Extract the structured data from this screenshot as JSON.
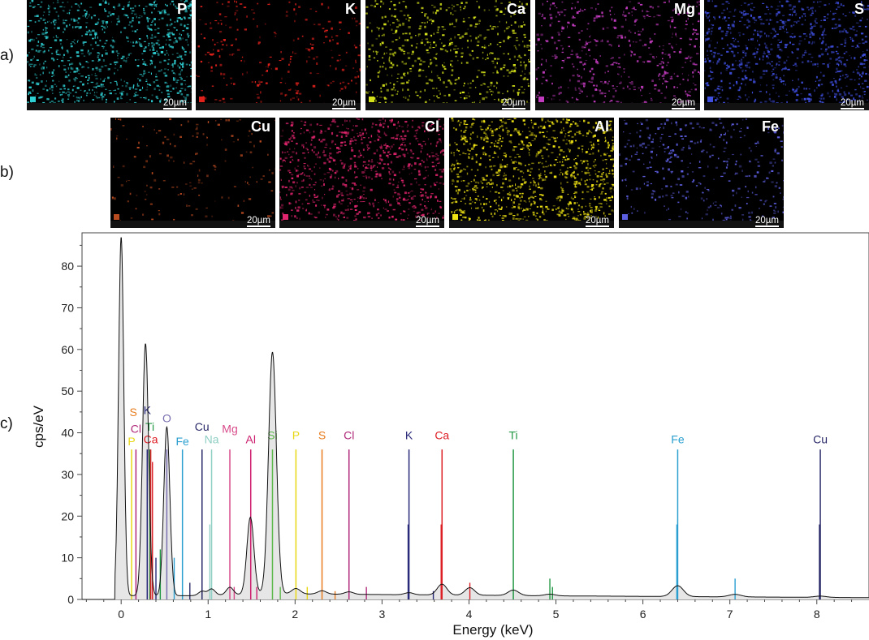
{
  "row_labels": {
    "a": "a)",
    "b": "b)",
    "c": "c)"
  },
  "maps": [
    {
      "row": "a",
      "element": "P",
      "color": "#2fd0d4",
      "scale": "20µm"
    },
    {
      "row": "a",
      "element": "K",
      "color": "#e0211c",
      "scale": "20µm"
    },
    {
      "row": "a",
      "element": "Ca",
      "color": "#d6e31a",
      "scale": "20µm"
    },
    {
      "row": "a",
      "element": "Mg",
      "color": "#c23bbf",
      "scale": "20µm"
    },
    {
      "row": "a",
      "element": "S",
      "color": "#3f4fe0",
      "scale": "20µm"
    },
    {
      "row": "b",
      "element": "Cu",
      "color": "#b84a20",
      "scale": "20µm"
    },
    {
      "row": "b",
      "element": "Cl",
      "color": "#e0246d",
      "scale": "20µm"
    },
    {
      "row": "b",
      "element": "Al",
      "color": "#f0e313",
      "scale": "20µm"
    },
    {
      "row": "b",
      "element": "Fe",
      "color": "#5c5ee0",
      "scale": "20µm"
    }
  ],
  "chart_data": {
    "type": "line",
    "xlabel": "Energy (keV)",
    "ylabel": "cps/eV",
    "xlim": [
      -0.45,
      8.6
    ],
    "ylim": [
      0,
      88
    ],
    "x_ticks": [
      0,
      1,
      2,
      3,
      4,
      5,
      6,
      7,
      8
    ],
    "y_ticks": [
      0,
      10,
      20,
      30,
      40,
      50,
      60,
      70,
      80
    ],
    "grid": false,
    "fill_color": "#e6e6e6",
    "spectrum_peaks": [
      {
        "x": 0.0,
        "y": 86.5,
        "width": 0.03
      },
      {
        "x": 0.28,
        "y": 60.5,
        "width": 0.035
      },
      {
        "x": 0.525,
        "y": 40.5,
        "width": 0.035
      },
      {
        "x": 0.93,
        "y": 1.0,
        "width": 0.04
      },
      {
        "x": 1.04,
        "y": 1.5,
        "width": 0.04
      },
      {
        "x": 1.25,
        "y": 1.8,
        "width": 0.04
      },
      {
        "x": 1.486,
        "y": 18.5,
        "width": 0.04
      },
      {
        "x": 1.74,
        "y": 58.0,
        "width": 0.045
      },
      {
        "x": 2.01,
        "y": 1.3,
        "width": 0.05
      },
      {
        "x": 2.31,
        "y": 0.8,
        "width": 0.05
      },
      {
        "x": 2.62,
        "y": 0.6,
        "width": 0.05
      },
      {
        "x": 3.31,
        "y": 0.5,
        "width": 0.05
      },
      {
        "x": 3.69,
        "y": 2.6,
        "width": 0.055
      },
      {
        "x": 4.01,
        "y": 1.8,
        "width": 0.055
      },
      {
        "x": 4.51,
        "y": 1.3,
        "width": 0.06
      },
      {
        "x": 4.93,
        "y": 0.4,
        "width": 0.06
      },
      {
        "x": 6.4,
        "y": 2.6,
        "width": 0.065
      },
      {
        "x": 7.06,
        "y": 0.6,
        "width": 0.07
      },
      {
        "x": 8.04,
        "y": 0.3,
        "width": 0.07
      }
    ],
    "markers": [
      {
        "label": "S",
        "x": 0.14,
        "y": 0,
        "color": "#e87c1e",
        "text_y": 44
      },
      {
        "label": "Cl",
        "x": 0.17,
        "y": 36,
        "color": "#b0287a",
        "text_y": 40
      },
      {
        "label": "P",
        "x": 0.12,
        "y": 36,
        "color": "#e8d814",
        "text_y": 37
      },
      {
        "label": "K",
        "x": 0.3,
        "y": 36,
        "color": "#2a2a7a",
        "text_y": 44.5
      },
      {
        "label": "Ti",
        "x": 0.33,
        "y": 36,
        "color": "#229944",
        "text_y": 40.5
      },
      {
        "label": "Ca",
        "x": 0.34,
        "y": 36,
        "color": "#dd1f26",
        "text_y": 37.5
      },
      {
        "label": "O",
        "x": 0.525,
        "y": 36,
        "color": "#7a6fb0",
        "text_y": 42.5
      },
      {
        "label": "Fe",
        "x": 0.705,
        "y": 36,
        "color": "#2a9fd0",
        "text_y": 37
      },
      {
        "label": "Cu",
        "x": 0.93,
        "y": 36,
        "color": "#2a2a6a",
        "text_y": 40.5
      },
      {
        "label": "Na",
        "x": 1.04,
        "y": 36,
        "color": "#8fcfc4",
        "text_y": 37.5
      },
      {
        "label": "Mg",
        "x": 1.25,
        "y": 36,
        "color": "#d84a8a",
        "text_y": 40
      },
      {
        "label": "Al",
        "x": 1.49,
        "y": 36,
        "color": "#cc1d6e",
        "text_y": 37.5
      },
      {
        "label": "Si",
        "x": 1.74,
        "y": 36,
        "color": "#5cb84a",
        "text_y": 38.5
      },
      {
        "label": "P",
        "x": 2.01,
        "y": 36,
        "color": "#e8d814",
        "text_y": 38.5
      },
      {
        "label": "S",
        "x": 2.31,
        "y": 36,
        "color": "#e87c1e",
        "text_y": 38.5
      },
      {
        "label": "Cl",
        "x": 2.62,
        "y": 36,
        "color": "#b0287a",
        "text_y": 38.5
      },
      {
        "label": "K",
        "x": 3.31,
        "y": 36,
        "color": "#2a2a7a",
        "text_y": 38.5
      },
      {
        "label": "Ca",
        "x": 3.69,
        "y": 36,
        "color": "#dd1f26",
        "text_y": 38.5
      },
      {
        "label": "Ti",
        "x": 4.51,
        "y": 36,
        "color": "#229944",
        "text_y": 38.5
      },
      {
        "label": "Fe",
        "x": 6.4,
        "y": 36,
        "color": "#2a9fd0",
        "text_y": 37.5
      },
      {
        "label": "Cu",
        "x": 8.04,
        "y": 36,
        "color": "#2a2a6a",
        "text_y": 37.5
      }
    ],
    "secondary_lines": [
      {
        "x": 0.36,
        "y": 33,
        "color": "#dd1f26"
      },
      {
        "x": 0.4,
        "y": 10,
        "color": "#2a2a7a"
      },
      {
        "x": 0.45,
        "y": 12,
        "color": "#229944"
      },
      {
        "x": 0.61,
        "y": 10,
        "color": "#2a9fd0"
      },
      {
        "x": 0.79,
        "y": 4,
        "color": "#2a2a6a"
      },
      {
        "x": 1.02,
        "y": 18,
        "color": "#8fcfc4"
      },
      {
        "x": 1.3,
        "y": 3,
        "color": "#d84a8a"
      },
      {
        "x": 1.56,
        "y": 3,
        "color": "#cc1d6e"
      },
      {
        "x": 1.83,
        "y": 3,
        "color": "#5cb84a"
      },
      {
        "x": 2.14,
        "y": 3,
        "color": "#e8d814"
      },
      {
        "x": 2.46,
        "y": 2,
        "color": "#e87c1e"
      },
      {
        "x": 2.82,
        "y": 3,
        "color": "#b0287a"
      },
      {
        "x": 3.3,
        "y": 18,
        "color": "#2a2a7a"
      },
      {
        "x": 3.59,
        "y": 2,
        "color": "#2a2a7a"
      },
      {
        "x": 3.68,
        "y": 18,
        "color": "#dd1f26"
      },
      {
        "x": 4.01,
        "y": 4,
        "color": "#dd1f26"
      },
      {
        "x": 4.93,
        "y": 5,
        "color": "#229944"
      },
      {
        "x": 4.96,
        "y": 3,
        "color": "#229944"
      },
      {
        "x": 6.39,
        "y": 18,
        "color": "#2a9fd0"
      },
      {
        "x": 7.06,
        "y": 5,
        "color": "#2a9fd0"
      },
      {
        "x": 8.03,
        "y": 18,
        "color": "#2a2a6a"
      }
    ]
  }
}
